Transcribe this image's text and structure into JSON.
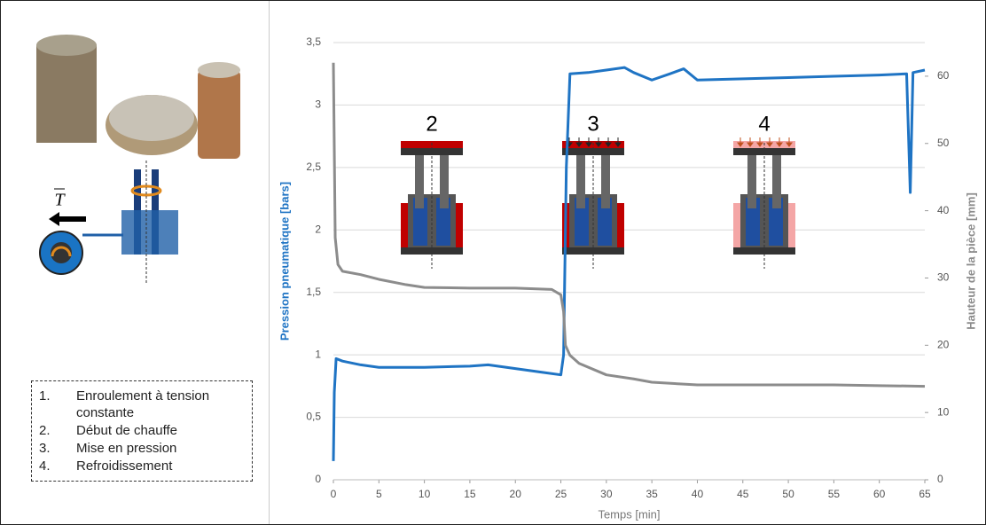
{
  "steps": [
    {
      "number": "1.",
      "text": "Enroulement à tension constante"
    },
    {
      "number": "2.",
      "text": "Début de chauffe"
    },
    {
      "number": "3.",
      "text": "Mise en pression"
    },
    {
      "number": "4.",
      "text": "Refroidissement"
    }
  ],
  "force_label": "T",
  "chart_data": {
    "type": "line",
    "xlabel": "Temps [min]",
    "ylabel": "Pression pneumatique [bars]",
    "y2label": "Hauteur de la pièce [mm]",
    "xlim": [
      0,
      65
    ],
    "xticks": [
      0,
      5,
      10,
      15,
      20,
      25,
      30,
      35,
      40,
      45,
      50,
      55,
      60,
      65
    ],
    "ylim": [
      0,
      3.5
    ],
    "yticks": [
      0,
      {
        "value": 0.5,
        "label": "0,5"
      },
      1,
      {
        "value": 1.5,
        "label": "1,5"
      },
      2,
      {
        "value": 2.5,
        "label": "2,5"
      },
      3,
      {
        "value": 3.5,
        "label": "3,5"
      }
    ],
    "y2lim": [
      0,
      65
    ],
    "y2ticks": [
      0,
      10,
      20,
      30,
      40,
      50,
      60
    ],
    "grid": true,
    "annotations": [
      "2",
      "3",
      "4"
    ],
    "series": [
      {
        "name": "Pression pneumatique",
        "color": "#1f74c4",
        "x": [
          0,
          0.1,
          0.3,
          1,
          3,
          5,
          10,
          15,
          17,
          20,
          23,
          25,
          25.3,
          25.6,
          26,
          28,
          30,
          32,
          33,
          35,
          37,
          38.5,
          40,
          45,
          50,
          55,
          60,
          63,
          63.4,
          63.7,
          65
        ],
        "values": [
          0.15,
          0.7,
          0.97,
          0.95,
          0.92,
          0.9,
          0.9,
          0.91,
          0.92,
          0.89,
          0.86,
          0.84,
          1.0,
          2.5,
          3.25,
          3.26,
          3.28,
          3.3,
          3.26,
          3.2,
          3.25,
          3.29,
          3.2,
          3.21,
          3.22,
          3.23,
          3.24,
          3.25,
          2.3,
          3.26,
          3.28
        ]
      },
      {
        "name": "Hauteur de la pièce",
        "color": "#8c8c8c",
        "axis": "y2",
        "x": [
          0,
          0.2,
          0.5,
          1,
          3,
          5,
          8,
          10,
          15,
          20,
          24,
          25,
          25.3,
          25.5,
          26,
          27,
          30,
          33,
          35,
          40,
          45,
          50,
          55,
          60,
          65
        ],
        "values": [
          62,
          36,
          32,
          31,
          30.5,
          29.8,
          29,
          28.6,
          28.5,
          28.5,
          28.3,
          27.5,
          25,
          20,
          18.5,
          17.3,
          15.6,
          15,
          14.5,
          14.1,
          14.1,
          14.1,
          14.1,
          14,
          13.9
        ]
      }
    ]
  }
}
